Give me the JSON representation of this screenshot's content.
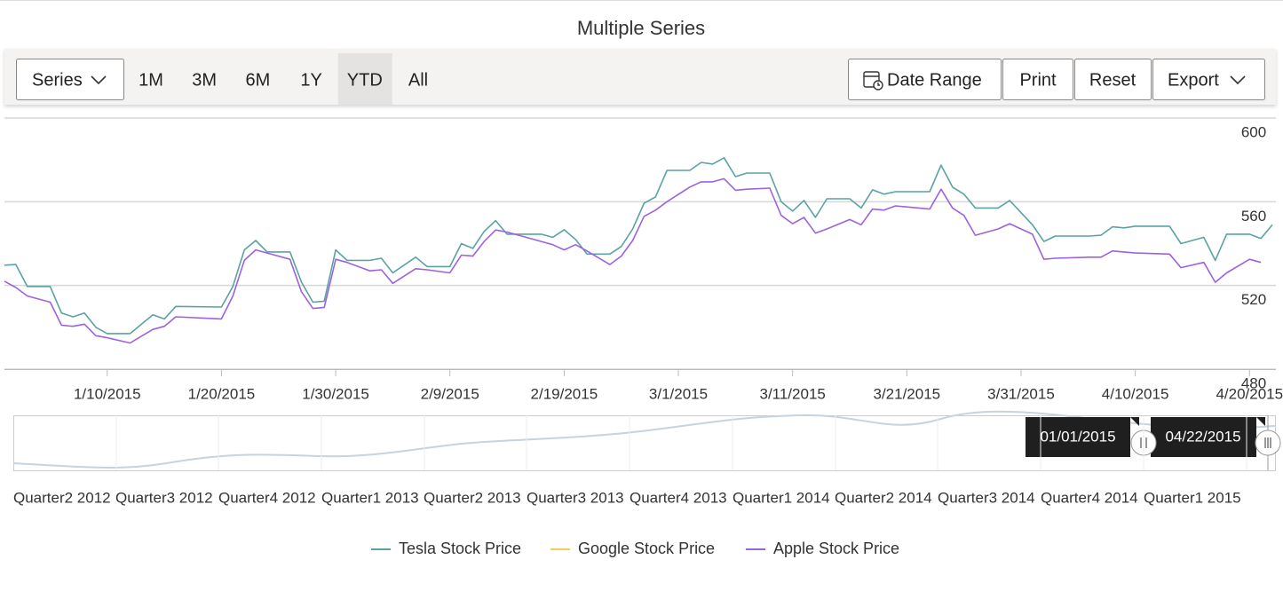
{
  "chart_data": {
    "type": "line",
    "title": "Multiple Series",
    "x": [
      "1/1/2015",
      "1/2/2015",
      "1/3/2015",
      "1/5/2015",
      "1/6/2015",
      "1/7/2015",
      "1/8/2015",
      "1/9/2015",
      "1/10/2015",
      "1/12/2015",
      "1/14/2015",
      "1/15/2015",
      "1/16/2015",
      "1/20/2015",
      "1/21/2015",
      "1/22/2015",
      "1/23/2015",
      "1/24/2015",
      "1/26/2015",
      "1/27/2015",
      "1/28/2015",
      "1/29/2015",
      "1/30/2015",
      "1/31/2015",
      "2/2/2015",
      "2/3/2015",
      "2/4/2015",
      "2/6/2015",
      "2/7/2015",
      "2/9/2015",
      "2/10/2015",
      "2/11/2015",
      "2/12/2015",
      "2/13/2015",
      "2/14/2015",
      "2/17/2015",
      "2/18/2015",
      "2/19/2015",
      "2/20/2015",
      "2/21/2015",
      "2/23/2015",
      "2/24/2015",
      "2/25/2015",
      "2/26/2015",
      "2/27/2015",
      "2/28/2015",
      "3/2/2015",
      "3/3/2015",
      "3/4/2015",
      "3/5/2015",
      "3/6/2015",
      "3/7/2015",
      "3/9/2015",
      "3/10/2015",
      "3/11/2015",
      "3/12/2015",
      "3/13/2015",
      "3/14/2015",
      "3/16/2015",
      "3/17/2015",
      "3/18/2015",
      "3/19/2015",
      "3/20/2015",
      "3/23/2015",
      "3/24/2015",
      "3/25/2015",
      "3/26/2015",
      "3/27/2015",
      "3/29/2015",
      "3/30/2015",
      "4/1/2015",
      "4/2/2015",
      "4/3/2015",
      "4/6/2015",
      "4/7/2015",
      "4/8/2015",
      "4/9/2015",
      "4/10/2015",
      "4/13/2015",
      "4/14/2015",
      "4/16/2015",
      "4/17/2015",
      "4/18/2015",
      "4/20/2015",
      "4/21/2015",
      "4/22/2015"
    ],
    "series": [
      {
        "name": "Tesla Stock Price",
        "color": "#5aa3a2",
        "values": [
          529.7,
          530,
          519.5,
          519.5,
          506.8,
          505,
          506.8,
          500,
          497,
          497,
          506,
          504,
          510,
          509.7,
          519.5,
          537,
          541.5,
          536,
          536,
          521.6,
          512,
          512.5,
          537,
          532,
          532,
          533,
          526,
          533.5,
          529,
          529,
          540,
          537.7,
          545.8,
          551,
          544.5,
          544.5,
          543,
          546.6,
          542,
          535,
          535,
          538.6,
          547,
          559.3,
          562.3,
          575,
          575,
          578.8,
          578,
          581,
          572,
          573.7,
          573.7,
          560,
          555.5,
          560.6,
          552.5,
          561.4,
          561.4,
          557,
          565.7,
          563.6,
          564.8,
          564.8,
          577.5,
          567,
          563.6,
          557,
          557,
          560.6,
          549,
          541,
          543.6,
          543.6,
          544,
          548,
          547.5,
          548.3,
          548.3,
          540,
          543,
          532,
          544.5,
          544.5,
          542.4,
          549
        ]
      },
      {
        "name": "Google Stock Price",
        "color": "#f2cf5b",
        "values": [
          null,
          null,
          null,
          null,
          null,
          null,
          null,
          null,
          null,
          null,
          null,
          null,
          null,
          null,
          null,
          null,
          null,
          null,
          null,
          null,
          null,
          null,
          null,
          null,
          null,
          null,
          null,
          null,
          null,
          null,
          null,
          null,
          null,
          null,
          null,
          null,
          null,
          null,
          null,
          null,
          null,
          null,
          null,
          null,
          null,
          null,
          null,
          null,
          null,
          null,
          null,
          null,
          null,
          null,
          null,
          null,
          null,
          null,
          null,
          null,
          null,
          null,
          null,
          null,
          null,
          null,
          null,
          null,
          null,
          null,
          null,
          null,
          null,
          null,
          null,
          null,
          null,
          null,
          null,
          null,
          null,
          null,
          null,
          null,
          null,
          null
        ]
      },
      {
        "name": "Apple Stock Price",
        "color": "#9d62e0",
        "values": [
          522,
          519,
          515,
          512,
          501,
          500.5,
          501.5,
          496,
          495,
          492.5,
          499,
          500.5,
          505,
          504,
          515,
          532,
          537,
          535.5,
          532.5,
          517,
          509,
          509.5,
          532.5,
          531,
          527,
          527.5,
          521,
          528,
          527.5,
          526,
          534.5,
          534,
          541,
          546.5,
          545.5,
          541,
          539.5,
          537,
          539.5,
          536.5,
          530,
          534,
          541.5,
          553,
          556,
          560,
          567,
          569.5,
          569.5,
          571,
          565.5,
          566,
          566.5,
          553.5,
          549.5,
          552.5,
          545,
          547,
          551.5,
          549,
          556.5,
          556,
          558,
          556.5,
          566,
          557,
          553.5,
          544,
          547,
          549.5,
          544.5,
          532.5,
          533,
          533.5,
          533.5,
          536.5,
          536,
          535.5,
          535,
          528.5,
          531,
          521.5,
          526,
          532.5,
          531,
          null
        ]
      }
    ],
    "xlim": [
      "1/1/2015",
      "4/22/2015"
    ],
    "xticks": [
      "1/10/2015",
      "1/20/2015",
      "1/30/2015",
      "2/9/2015",
      "2/19/2015",
      "3/1/2015",
      "3/11/2015",
      "3/21/2015",
      "3/31/2015",
      "4/10/2015",
      "4/20/2015"
    ],
    "ylim": [
      480,
      600
    ],
    "yticks": [
      480,
      520,
      560,
      600
    ],
    "grid": true,
    "legend": "bottom"
  },
  "toolbar": {
    "series_button": "Series",
    "periods": [
      "1M",
      "3M",
      "6M",
      "1Y",
      "YTD",
      "All"
    ],
    "selected_period": "YTD",
    "buttons": [
      "Date Range",
      "Print",
      "Reset",
      "Export"
    ]
  },
  "navigator": {
    "labels": [
      "Quarter2 2012",
      "Quarter3 2012",
      "Quarter4 2012",
      "Quarter1 2013",
      "Quarter2 2013",
      "Quarter3 2013",
      "Quarter4 2013",
      "Quarter1 2014",
      "Quarter2 2014",
      "Quarter3 2014",
      "Quarter4 2014",
      "Quarter1 2015"
    ],
    "start": "01/01/2015",
    "end": "04/22/2015"
  }
}
